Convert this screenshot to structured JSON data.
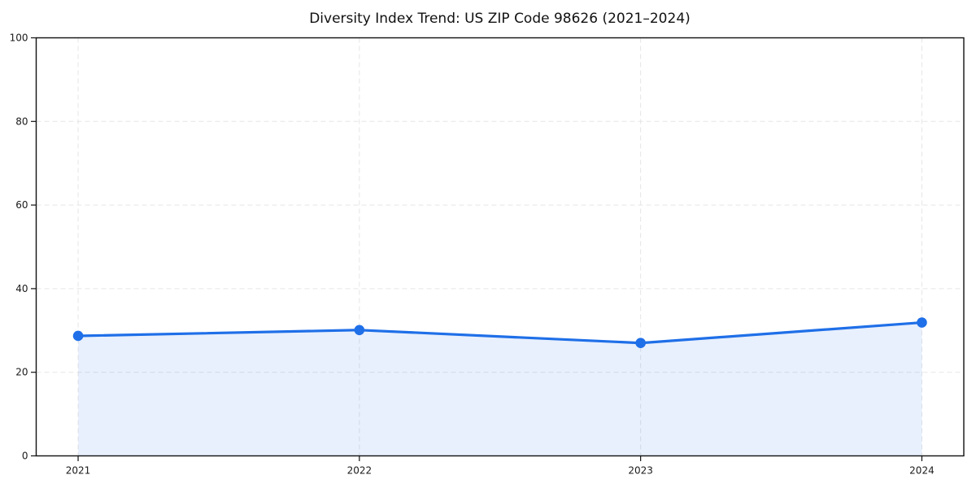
{
  "chart_data": {
    "type": "area",
    "title": "Diversity Index Trend: US ZIP Code 98626 (2021–2024)",
    "categories": [
      "2021",
      "2022",
      "2023",
      "2024"
    ],
    "series": [
      {
        "name": "Diversity Index",
        "values": [
          28.7,
          30.1,
          27.0,
          31.9
        ]
      }
    ],
    "xlabel": "",
    "ylabel": "",
    "ylim": [
      0,
      100
    ],
    "yticks": [
      0,
      20,
      40,
      60,
      80,
      100
    ],
    "ytick_labels": [
      "0",
      "20",
      "40",
      "60",
      "80",
      "100"
    ],
    "grid": true,
    "grid_style": "dashed",
    "legend_position": "none",
    "colors": {
      "line": "#1f6fe8",
      "marker": "#1f6fe8",
      "fill": "#1f6fe8",
      "fill_opacity": 0.1,
      "gridline": "#e5e5e5",
      "spine": "#111111",
      "tick_label": "#1a1a1a",
      "background": "#ffffff"
    }
  }
}
